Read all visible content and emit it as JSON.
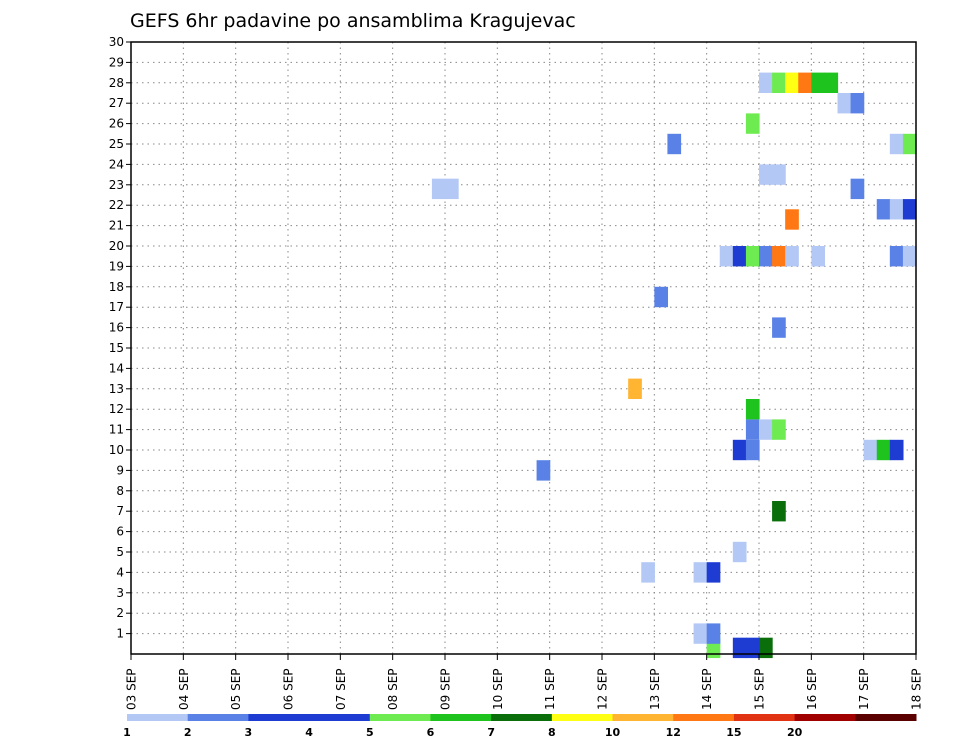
{
  "chart_data": {
    "type": "heatmap",
    "title": "GEFS 6hr padavine po ansamblima Kragujevac",
    "xlabel": "",
    "ylabel": "",
    "x_ticks": [
      "03 SEP",
      "04 SEP",
      "05 SEP",
      "06 SEP",
      "07 SEP",
      "08 SEP",
      "09 SEP",
      "10 SEP",
      "11 SEP",
      "12 SEP",
      "13 SEP",
      "14 SEP",
      "15 SEP",
      "16 SEP",
      "17 SEP",
      "18 SEP"
    ],
    "x_range_days": [
      0,
      15
    ],
    "y_ticks": [
      1,
      2,
      3,
      4,
      5,
      6,
      7,
      8,
      9,
      10,
      11,
      12,
      13,
      14,
      15,
      16,
      17,
      18,
      19,
      20,
      21,
      22,
      23,
      24,
      25,
      26,
      27,
      28,
      29,
      30
    ],
    "ylim": [
      0,
      30
    ],
    "grid": true,
    "colorbar": {
      "placement": "bottom",
      "tick_labels": [
        "1",
        "2",
        "3",
        "4",
        "5",
        "6",
        "7",
        "8",
        "10",
        "12",
        "15",
        "20"
      ],
      "colors": [
        "#b4c8f5",
        "#5a82e6",
        "#1e3cd2",
        "#1e3cd2",
        "#6eeb50",
        "#1ec31e",
        "#0a6e0a",
        "#ffff14",
        "#ffb432",
        "#ff7814",
        "#e13214",
        "#a00000",
        "#5a0000"
      ]
    },
    "cells": [
      {
        "x": 11.0,
        "y": 0.3,
        "c": "#6eeb50"
      },
      {
        "x": 11.5,
        "y": 0.3,
        "c": "#1e3cd2"
      },
      {
        "x": 11.75,
        "y": 0.3,
        "c": "#1e3cd2"
      },
      {
        "x": 12.0,
        "y": 0.3,
        "c": "#0a6e0a"
      },
      {
        "x": 10.75,
        "y": 1,
        "c": "#b4c8f5"
      },
      {
        "x": 11.0,
        "y": 1,
        "c": "#5a82e6"
      },
      {
        "x": 9.75,
        "y": 4,
        "c": "#b4c8f5"
      },
      {
        "x": 10.75,
        "y": 4,
        "c": "#b4c8f5"
      },
      {
        "x": 11.0,
        "y": 4,
        "c": "#1e3cd2"
      },
      {
        "x": 11.5,
        "y": 5,
        "c": "#b4c8f5"
      },
      {
        "x": 12.25,
        "y": 7,
        "c": "#0a6e0a"
      },
      {
        "x": 7.75,
        "y": 9,
        "c": "#5a82e6"
      },
      {
        "x": 11.5,
        "y": 10,
        "c": "#1e3cd2"
      },
      {
        "x": 11.75,
        "y": 10,
        "c": "#5a82e6"
      },
      {
        "x": 14.0,
        "y": 10,
        "c": "#b4c8f5"
      },
      {
        "x": 14.25,
        "y": 10,
        "c": "#1ec31e"
      },
      {
        "x": 14.5,
        "y": 10,
        "c": "#1e3cd2"
      },
      {
        "x": 11.75,
        "y": 11,
        "c": "#5a82e6"
      },
      {
        "x": 12.0,
        "y": 11,
        "c": "#b4c8f5"
      },
      {
        "x": 12.25,
        "y": 11,
        "c": "#6eeb50"
      },
      {
        "x": 11.75,
        "y": 12,
        "c": "#1ec31e"
      },
      {
        "x": 9.5,
        "y": 13,
        "c": "#ffb432"
      },
      {
        "x": 12.25,
        "y": 16,
        "c": "#5a82e6"
      },
      {
        "x": 10.0,
        "y": 17.5,
        "c": "#5a82e6"
      },
      {
        "x": 11.25,
        "y": 19.5,
        "c": "#b4c8f5"
      },
      {
        "x": 11.5,
        "y": 19.5,
        "c": "#1e3cd2"
      },
      {
        "x": 11.75,
        "y": 19.5,
        "c": "#6eeb50"
      },
      {
        "x": 12.0,
        "y": 19.5,
        "c": "#5a82e6"
      },
      {
        "x": 12.25,
        "y": 19.5,
        "c": "#ff7814"
      },
      {
        "x": 12.5,
        "y": 19.5,
        "c": "#b4c8f5"
      },
      {
        "x": 13.0,
        "y": 19.5,
        "c": "#b4c8f5"
      },
      {
        "x": 14.5,
        "y": 19.5,
        "c": "#5a82e6"
      },
      {
        "x": 14.75,
        "y": 19.5,
        "c": "#b4c8f5"
      },
      {
        "x": 12.5,
        "y": 21.3,
        "c": "#ff7814"
      },
      {
        "x": 14.25,
        "y": 21.8,
        "c": "#5a82e6"
      },
      {
        "x": 14.5,
        "y": 21.8,
        "c": "#b4c8f5"
      },
      {
        "x": 14.75,
        "y": 21.8,
        "c": "#1e3cd2"
      },
      {
        "x": 5.75,
        "y": 22.8,
        "c": "#b4c8f5"
      },
      {
        "x": 6.0,
        "y": 22.8,
        "c": "#b4c8f5"
      },
      {
        "x": 13.75,
        "y": 22.8,
        "c": "#5a82e6"
      },
      {
        "x": 12.0,
        "y": 23.5,
        "c": "#b4c8f5"
      },
      {
        "x": 12.25,
        "y": 23.5,
        "c": "#b4c8f5"
      },
      {
        "x": 10.25,
        "y": 25,
        "c": "#5a82e6"
      },
      {
        "x": 14.5,
        "y": 25,
        "c": "#b4c8f5"
      },
      {
        "x": 14.75,
        "y": 25,
        "c": "#6eeb50"
      },
      {
        "x": 11.75,
        "y": 26,
        "c": "#6eeb50"
      },
      {
        "x": 13.5,
        "y": 27,
        "c": "#b4c8f5"
      },
      {
        "x": 13.75,
        "y": 27,
        "c": "#5a82e6"
      },
      {
        "x": 12.0,
        "y": 28,
        "c": "#b4c8f5"
      },
      {
        "x": 12.25,
        "y": 28,
        "c": "#6eeb50"
      },
      {
        "x": 12.5,
        "y": 28,
        "c": "#ffff14"
      },
      {
        "x": 12.75,
        "y": 28,
        "c": "#ff7814"
      },
      {
        "x": 13.0,
        "y": 28,
        "c": "#1ec31e"
      },
      {
        "x": 13.25,
        "y": 28,
        "c": "#1ec31e"
      }
    ]
  }
}
